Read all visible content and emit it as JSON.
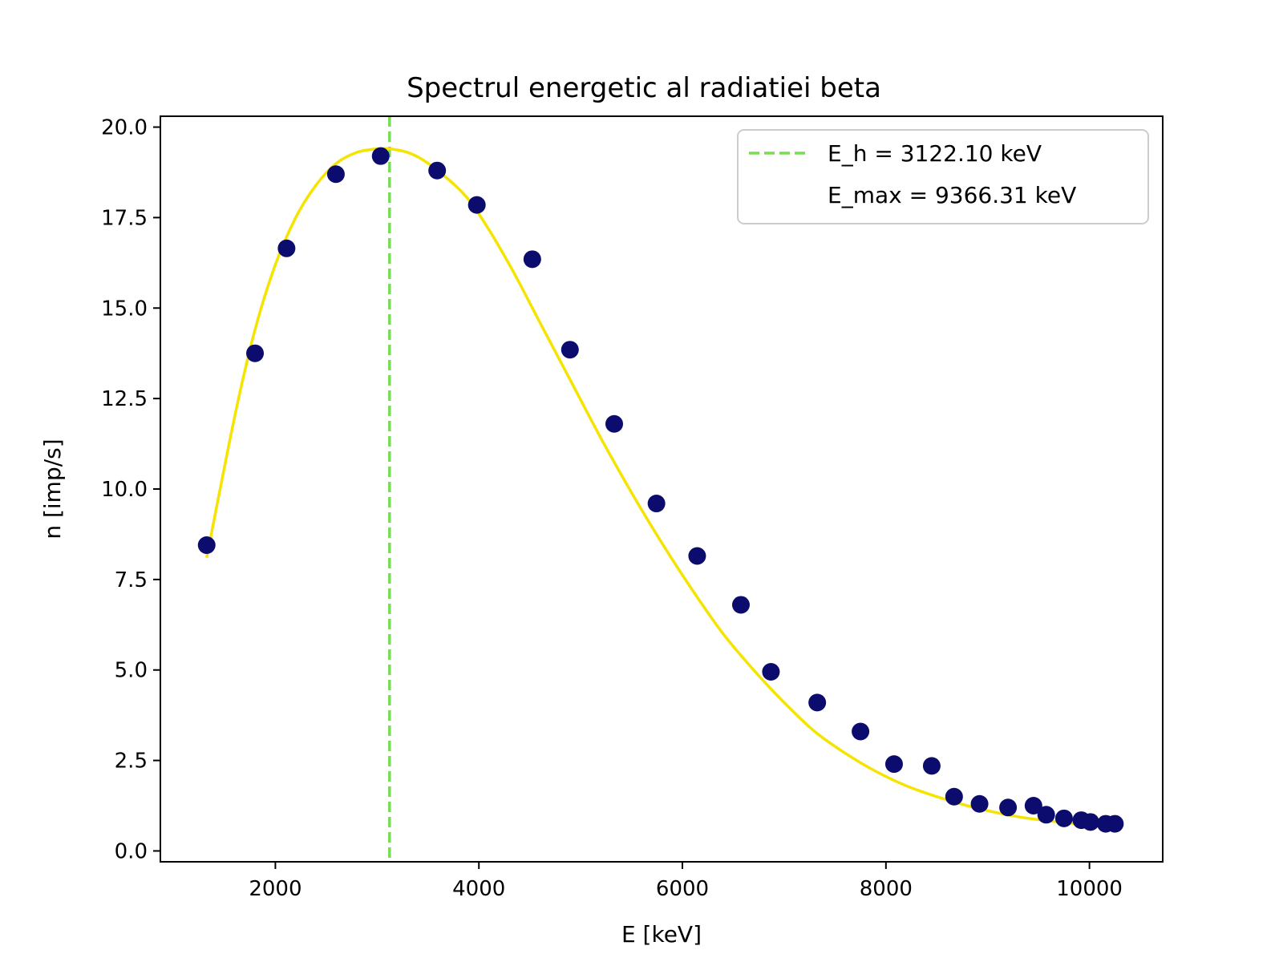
{
  "chart_data": {
    "type": "scatter",
    "title": "Spectrul energetic al radiatiei beta",
    "xlabel": "E [keV]",
    "ylabel": "n [imp/s]",
    "xlim": [
      870,
      10720
    ],
    "ylim": [
      -0.3,
      20.3
    ],
    "xticks": [
      2000,
      4000,
      6000,
      8000,
      10000
    ],
    "yticks": [
      0.0,
      2.5,
      5.0,
      7.5,
      10.0,
      12.5,
      15.0,
      17.5,
      20.0
    ],
    "xtick_labels": [
      "2000",
      "4000",
      "6000",
      "8000",
      "10000"
    ],
    "ytick_labels": [
      "0.0",
      "2.5",
      "5.0",
      "7.5",
      "10.0",
      "12.5",
      "15.0",
      "17.5",
      "20.0"
    ],
    "grid": false,
    "legend_position": "top-right",
    "points": {
      "color": "#0c0c6e",
      "x": [
        1325,
        1800,
        2110,
        2595,
        3035,
        3590,
        3980,
        4525,
        4895,
        5330,
        5745,
        6145,
        6575,
        6870,
        7325,
        7750,
        8080,
        8450,
        8670,
        8920,
        9200,
        9450,
        9575,
        9750,
        9920,
        10010,
        10160,
        10250
      ],
      "y": [
        8.45,
        13.75,
        16.65,
        18.7,
        19.2,
        18.8,
        17.85,
        16.35,
        13.85,
        11.8,
        9.6,
        8.15,
        6.8,
        4.95,
        4.1,
        3.3,
        2.4,
        2.35,
        1.5,
        1.3,
        1.2,
        1.25,
        1.0,
        0.9,
        0.85,
        0.8,
        0.75,
        0.75
      ]
    },
    "fit_curve": {
      "color": "#f5e400",
      "x": [
        1325,
        1600,
        1800,
        2000,
        2200,
        2400,
        2600,
        2800,
        3000,
        3122,
        3300,
        3500,
        3800,
        4000,
        4300,
        4600,
        4900,
        5200,
        5500,
        5800,
        6100,
        6400,
        6700,
        7000,
        7300,
        7600,
        7900,
        8200,
        8500,
        8800,
        9100,
        9400,
        9700,
        10000,
        10250
      ],
      "y": [
        8.1,
        12.0,
        14.4,
        16.2,
        17.5,
        18.4,
        19.0,
        19.3,
        19.4,
        19.4,
        19.3,
        19.0,
        18.3,
        17.6,
        16.2,
        14.6,
        13.0,
        11.4,
        9.9,
        8.5,
        7.2,
        6.0,
        5.0,
        4.1,
        3.3,
        2.7,
        2.2,
        1.8,
        1.5,
        1.25,
        1.05,
        0.9,
        0.8,
        0.72,
        0.68
      ]
    },
    "vline": {
      "x": 3122.1,
      "color": "#77dd55",
      "style": "dashed",
      "legend": "E_h = 3122.10 keV"
    },
    "legend_entries": [
      "E_h = 3122.10 keV",
      "E_max = 9366.31 keV"
    ]
  }
}
